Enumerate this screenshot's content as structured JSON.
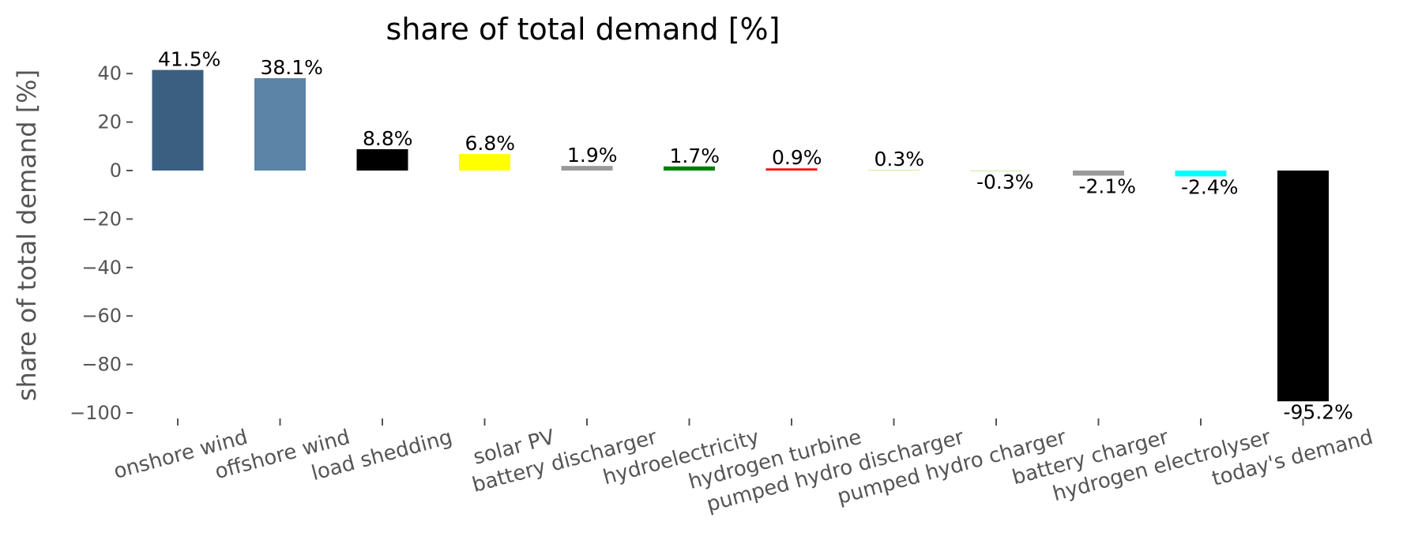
{
  "chart_data": {
    "type": "bar",
    "title": "share of total demand [%]",
    "ylabel": "share of total demand [%]",
    "xlabel": "",
    "ylim": [
      -104,
      46
    ],
    "yticks": [
      40,
      20,
      0,
      -20,
      -40,
      -60,
      -80,
      -100
    ],
    "ytick_labels": [
      "40",
      "20",
      "0",
      "−20",
      "−40",
      "−60",
      "−80",
      "−100"
    ],
    "grid": false,
    "categories": [
      "onshore wind",
      "offshore wind",
      "load shedding",
      "solar PV",
      "battery discharger",
      "hydroelectricity",
      "hydrogen turbine",
      "pumped hydro discharger",
      "pumped hydro charger",
      "battery charger",
      "hydrogen electrolyser",
      "today's demand"
    ],
    "values": [
      41.5,
      38.1,
      8.8,
      6.8,
      1.9,
      1.7,
      0.9,
      0.3,
      -0.3,
      -2.1,
      -2.4,
      -95.2
    ],
    "value_labels": [
      "41.5%",
      "38.1%",
      "8.8%",
      "6.8%",
      "1.9%",
      "1.7%",
      "0.9%",
      "0.3%",
      "-0.3%",
      "-2.1%",
      "-2.4%",
      "-95.2%"
    ],
    "colors": [
      "#3b5f81",
      "#5b84a6",
      "#000000",
      "#ffff00",
      "#999999",
      "#008000",
      "#ff0000",
      "#ccee99",
      "#ccee99",
      "#999999",
      "#00ffff",
      "#000000"
    ]
  }
}
